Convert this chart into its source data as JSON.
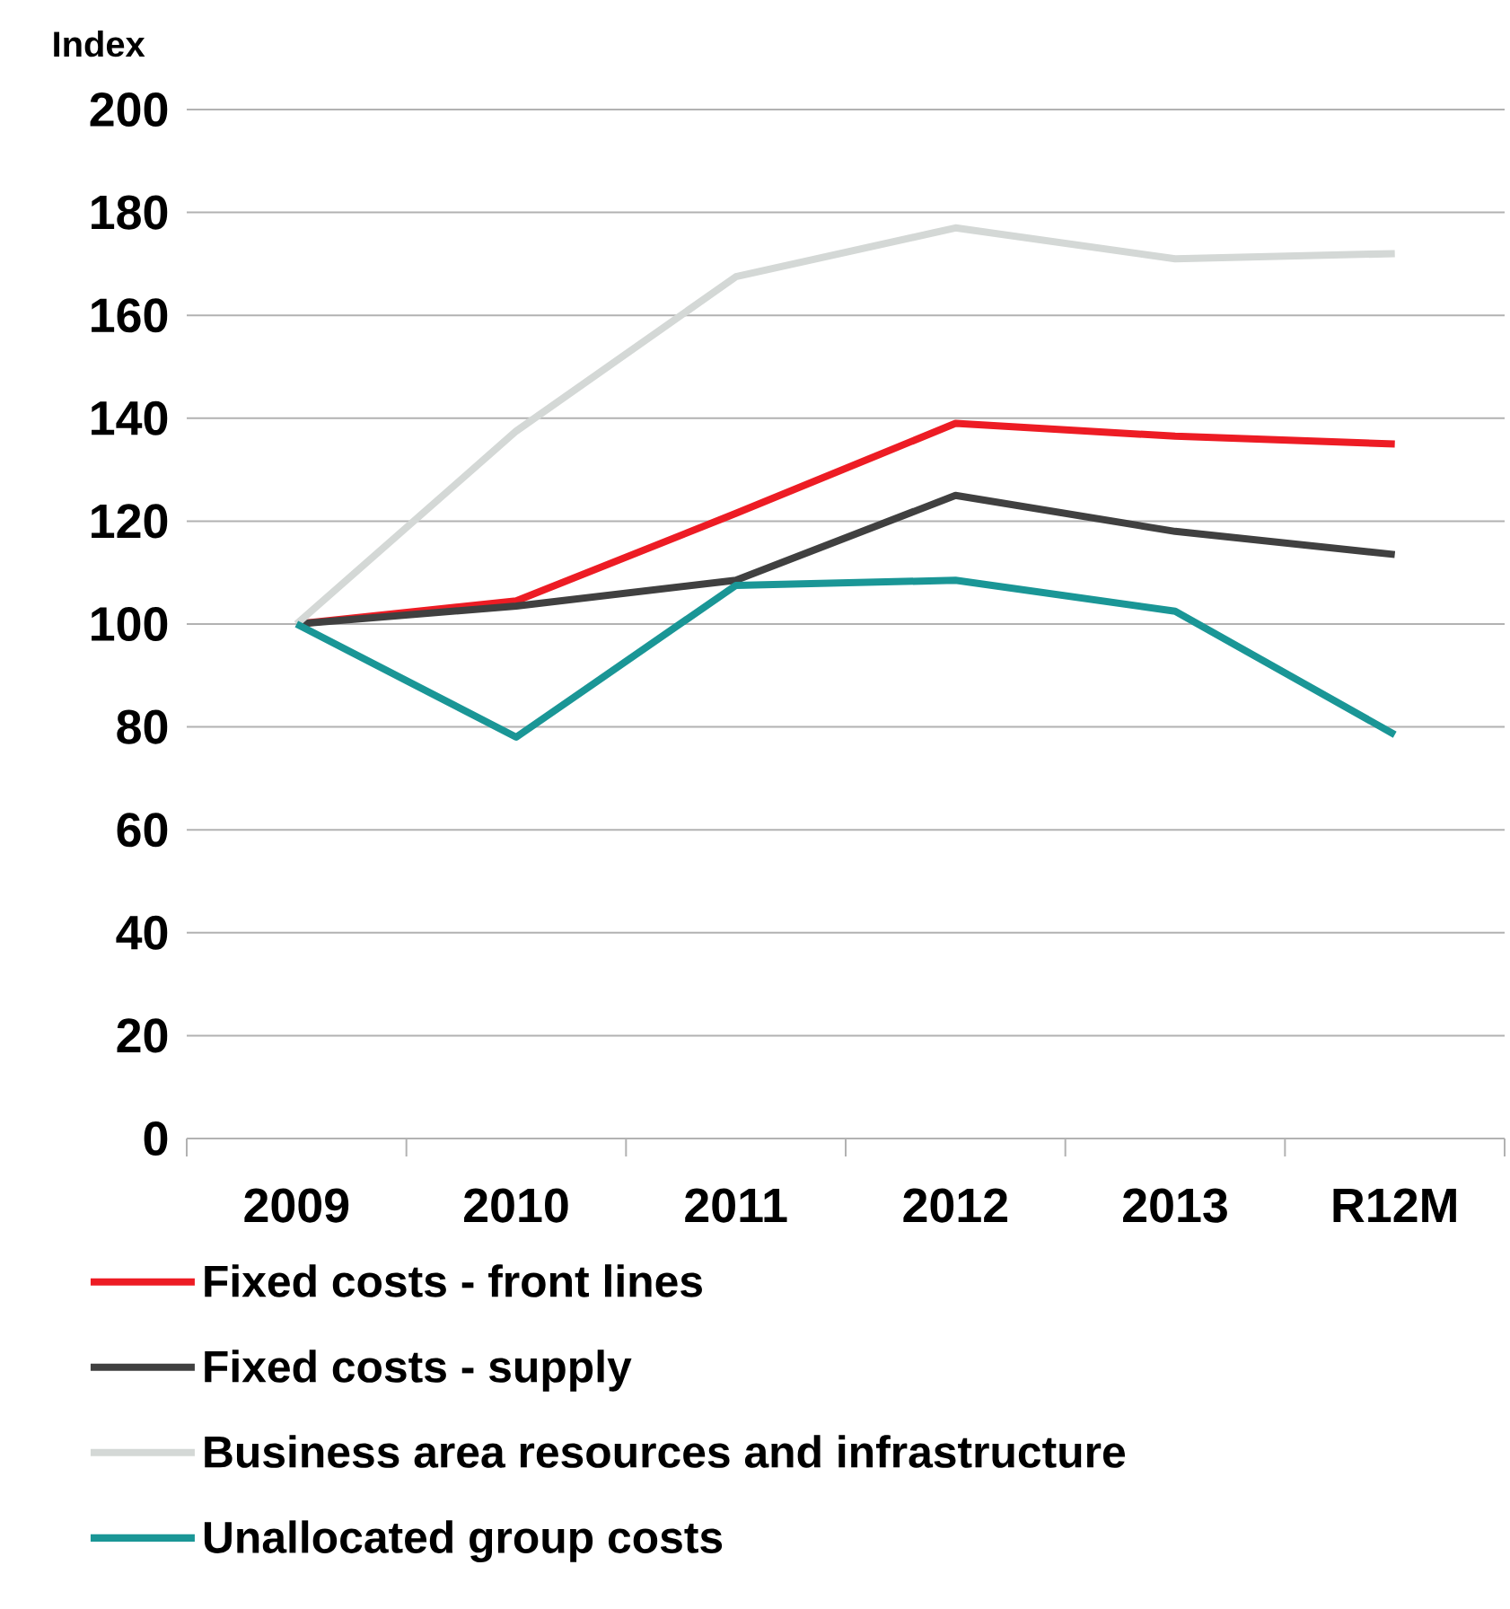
{
  "chart_data": {
    "type": "line",
    "ylabel": "Index",
    "categories": [
      "2009",
      "2010",
      "2011",
      "2012",
      "2013",
      "R12M"
    ],
    "series": [
      {
        "name": "Fixed costs - front lines",
        "color": "#ed1c24",
        "values": [
          100,
          104.5,
          121.5,
          139,
          136.5,
          135
        ]
      },
      {
        "name": "Fixed costs - supply",
        "color": "#404040",
        "values": [
          100,
          103.5,
          108.5,
          125,
          118,
          113.5
        ]
      },
      {
        "name": "Business area resources and infrastructure",
        "color": "#d4d8d6",
        "values": [
          100,
          137.5,
          167.5,
          177,
          171,
          172
        ]
      },
      {
        "name": "Unallocated group costs",
        "color": "#1a9696",
        "values": [
          100,
          78,
          107.5,
          108.5,
          102.5,
          78.5
        ]
      }
    ],
    "ylim": [
      0,
      200
    ],
    "yticks": [
      0,
      20,
      40,
      60,
      80,
      100,
      120,
      140,
      160,
      180,
      200
    ],
    "grid": "y",
    "legend": "bottom",
    "marker": "none",
    "line_style": "solid"
  }
}
